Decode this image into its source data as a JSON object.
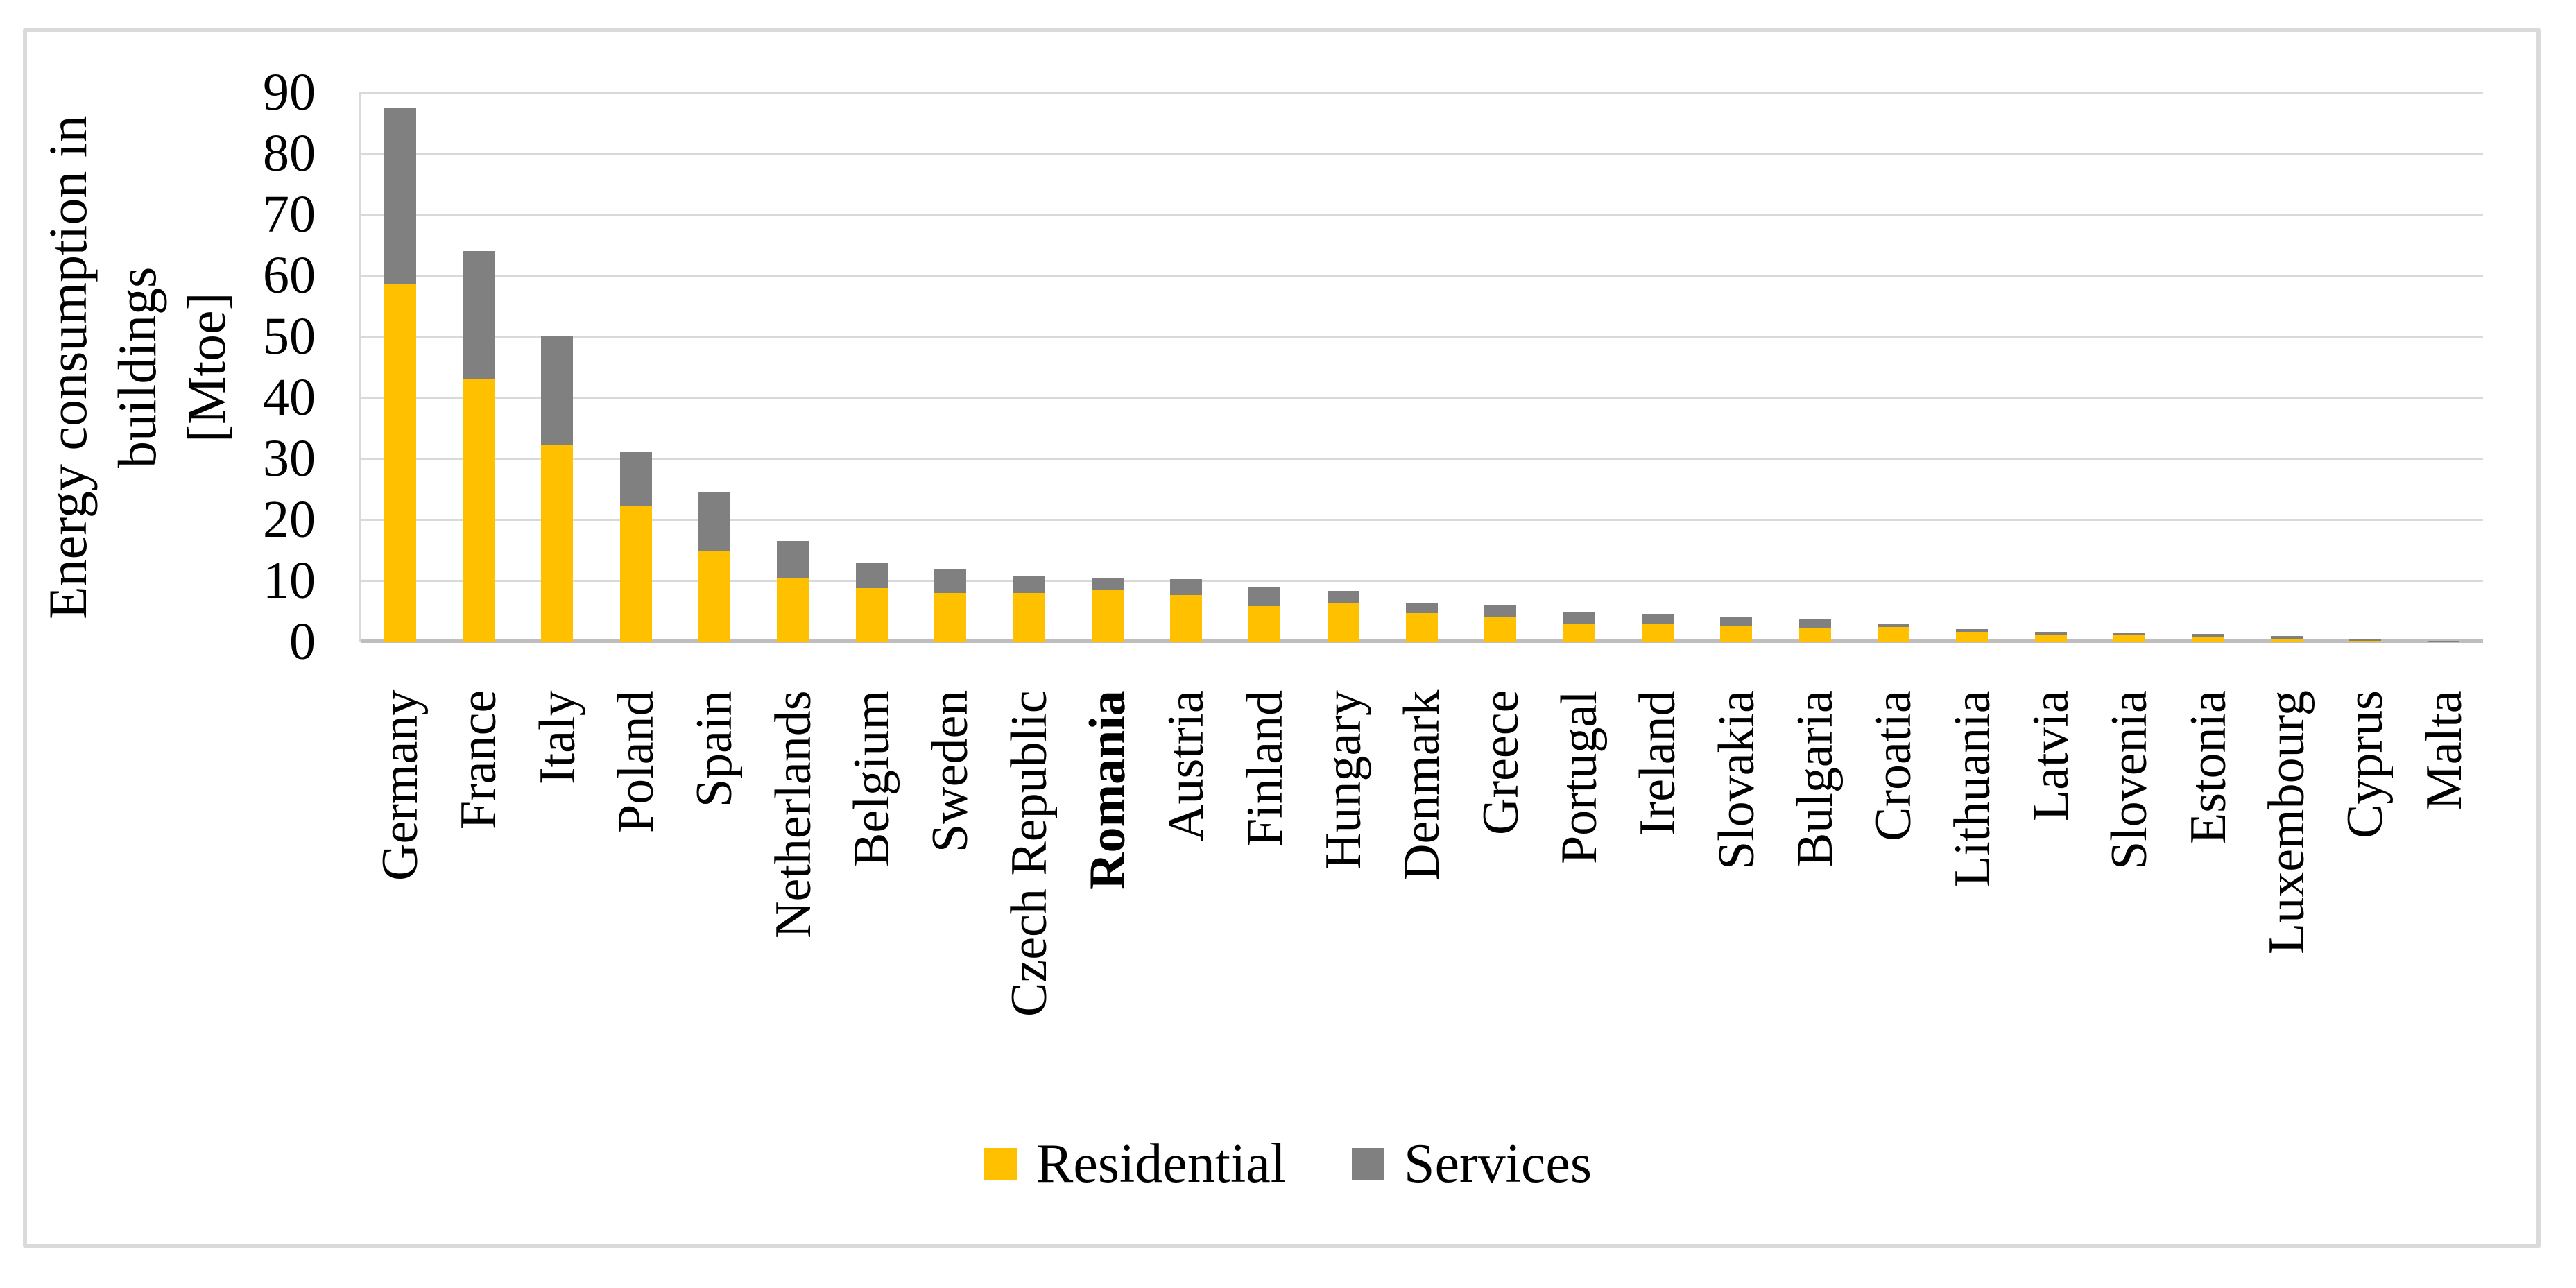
{
  "figure": {
    "background_color": "#FFFFFF",
    "border_color": "#DBD9D9"
  },
  "chart_data": {
    "type": "bar",
    "stacked": true,
    "title": "",
    "ylabel_line1": "Energy consumption in buildings",
    "ylabel_line2": "[Mtoe]",
    "ylim": [
      0,
      90
    ],
    "ytick_step": 10,
    "ytick_labels": [
      "90",
      "80",
      "70",
      "60",
      "50",
      "40",
      "30",
      "20",
      "10",
      "0"
    ],
    "grid": true,
    "gridline_color": "#D9D9D9",
    "axis_line_color": "#BFBDBD",
    "legend_position": "bottom",
    "categories": [
      "Germany",
      "France",
      "Italy",
      "Poland",
      "Spain",
      "Netherlands",
      "Belgium",
      "Sweden",
      "Czech Republic",
      "Romania",
      "Austria",
      "Finland",
      "Hungary",
      "Denmark",
      "Greece",
      "Portugal",
      "Ireland",
      "Slovakia",
      "Bulgaria",
      "Croatia",
      "Lithuania",
      "Latvia",
      "Slovenia",
      "Estonia",
      "Luxembourg",
      "Cyprus",
      "Malta"
    ],
    "bold_categories": [
      "Romania"
    ],
    "series": [
      {
        "name": "Residential",
        "color": "#FFC000",
        "values": [
          58.5,
          43.0,
          32.3,
          22.3,
          14.9,
          10.3,
          8.7,
          8.0,
          8.0,
          8.5,
          7.6,
          5.8,
          6.3,
          4.7,
          4.1,
          2.9,
          2.9,
          2.5,
          2.3,
          2.4,
          1.6,
          1.05,
          1.05,
          0.8,
          0.5,
          0.1,
          0.05
        ]
      },
      {
        "name": "Services",
        "color": "#808080",
        "values": [
          29.0,
          21.0,
          17.7,
          8.7,
          9.6,
          6.2,
          4.3,
          3.9,
          2.8,
          2.0,
          2.6,
          3.1,
          2.0,
          1.5,
          1.9,
          2.0,
          1.7,
          1.6,
          1.3,
          0.5,
          0.5,
          0.55,
          0.4,
          0.4,
          0.45,
          0.2,
          0.05
        ]
      }
    ]
  }
}
